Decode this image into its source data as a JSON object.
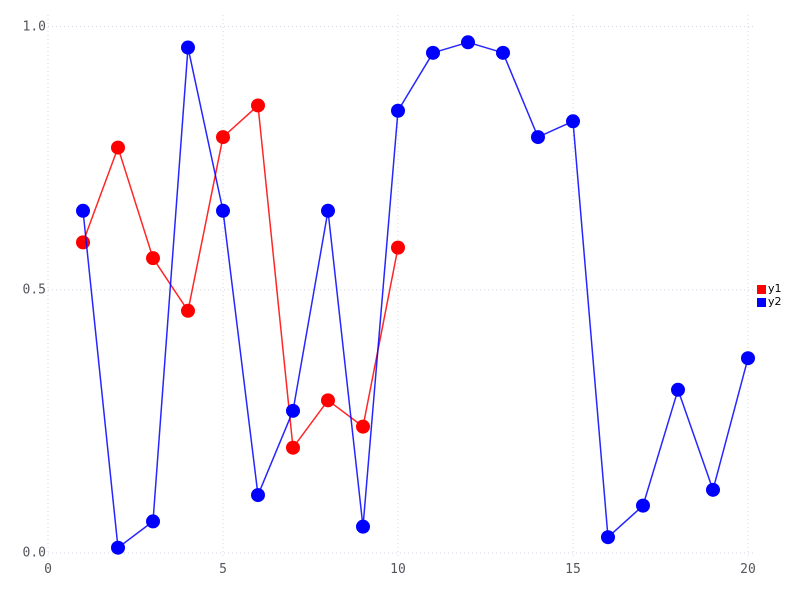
{
  "chart_data": {
    "type": "line",
    "title": "",
    "xlabel": "",
    "ylabel": "",
    "xlim": [
      0,
      20
    ],
    "ylim": [
      0.0,
      1.0
    ],
    "grid": "dotted",
    "x_ticks": {
      "values": [
        0,
        5,
        10,
        15,
        20
      ],
      "labels": [
        "0",
        "5",
        "10",
        "15",
        "20"
      ]
    },
    "y_ticks": {
      "values": [
        0.0,
        0.5,
        1.0
      ],
      "labels": [
        "0.0",
        "0.5",
        "1.0"
      ]
    },
    "legend": {
      "position": "right-center",
      "entries": [
        "y1",
        "y2"
      ]
    },
    "series": [
      {
        "name": "y1",
        "color": "#ff0000",
        "marker": "circle",
        "x": [
          1,
          2,
          3,
          4,
          5,
          6,
          7,
          8,
          9,
          10
        ],
        "y": [
          0.59,
          0.77,
          0.56,
          0.46,
          0.79,
          0.85,
          0.2,
          0.29,
          0.24,
          0.58
        ]
      },
      {
        "name": "y2",
        "color": "#0000ff",
        "marker": "circle",
        "x": [
          1,
          2,
          3,
          4,
          5,
          6,
          7,
          8,
          9,
          10,
          11,
          12,
          13,
          14,
          15,
          16,
          17,
          18,
          19,
          20
        ],
        "y": [
          0.65,
          0.01,
          0.06,
          0.96,
          0.65,
          0.11,
          0.27,
          0.65,
          0.05,
          0.84,
          0.95,
          0.97,
          0.95,
          0.79,
          0.82,
          0.03,
          0.09,
          0.31,
          0.12,
          0.37
        ]
      }
    ],
    "colors": {
      "grid": "#d4d4e0",
      "tick_text": "#55555e",
      "background": "#ffffff"
    }
  }
}
